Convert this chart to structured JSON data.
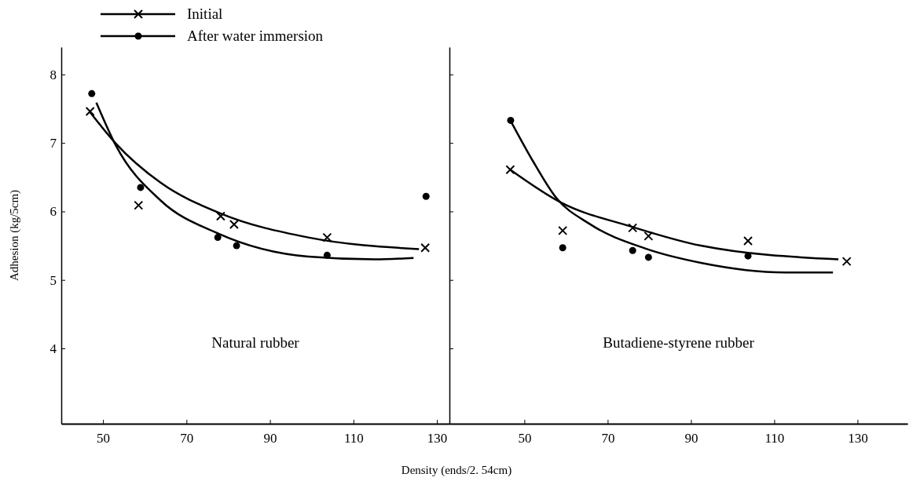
{
  "chart_data": [
    {
      "type": "scatter",
      "xlabel": "Density (ends/2. 54cm)",
      "ylabel": "Adhesion (kg/5cm)",
      "annotations": [
        "Natural rubber"
      ],
      "xlim": [
        40,
        133
      ],
      "xticks": [
        50,
        70,
        90,
        110,
        130
      ],
      "ylim": [
        2.9,
        8.4
      ],
      "yticks": [
        4,
        5,
        6,
        7,
        8
      ],
      "legend": "top left",
      "series": [
        {
          "name": "Initial",
          "type": "scatter",
          "marker": "cross",
          "color": "#000000",
          "x": [
            46.9,
            58.5,
            78.2,
            81.4,
            103.7,
            127.2
          ],
          "values": [
            7.46,
            6.09,
            5.93,
            5.81,
            5.62,
            5.47
          ]
        },
        {
          "name": "After water immersion",
          "type": "scatter",
          "marker": "circle",
          "color": "#000000",
          "x": [
            47.3,
            59.0,
            77.5,
            82.0,
            103.7,
            127.4
          ],
          "values": [
            7.72,
            6.35,
            5.62,
            5.5,
            5.36,
            6.22
          ]
        },
        {
          "type": "line",
          "marker": "none",
          "color": "#000000",
          "x": [
            46.9,
            53.1,
            63.8,
            78.2,
            99.2,
            125.7
          ],
          "values": [
            7.45,
            6.99,
            6.42,
            5.97,
            5.62,
            5.45
          ]
        },
        {
          "type": "line",
          "marker": "none",
          "color": "#000000",
          "x": [
            48.4,
            53.1,
            63.8,
            77.5,
            99.2,
            115.0,
            124.4
          ],
          "values": [
            7.59,
            6.96,
            6.16,
            5.68,
            5.34,
            5.3,
            5.32
          ]
        }
      ]
    },
    {
      "type": "scatter",
      "annotations": [
        "Butadiene-styrene rubber"
      ],
      "xlim": [
        32,
        142
      ],
      "xticks": [
        50,
        70,
        90,
        110,
        130
      ],
      "ylim": [
        2.9,
        8.4
      ],
      "yticks": [
        {
          "value": 4,
          "label": null
        },
        {
          "value": 5,
          "label": null
        },
        {
          "value": 6,
          "label": null
        },
        {
          "value": 7,
          "label": null
        },
        {
          "value": 8,
          "label": null
        }
      ],
      "tick_labels": "x",
      "series": [
        {
          "type": "scatter",
          "marker": "cross",
          "color": "#000000",
          "x": [
            46.6,
            59.2,
            76.0,
            79.8,
            103.7,
            127.4
          ],
          "values": [
            6.61,
            5.72,
            5.76,
            5.64,
            5.57,
            5.27
          ]
        },
        {
          "type": "scatter",
          "marker": "circle",
          "color": "#000000",
          "x": [
            46.7,
            59.2,
            76.0,
            79.8,
            103.7
          ],
          "values": [
            7.33,
            5.47,
            5.43,
            5.33,
            5.35
          ]
        },
        {
          "type": "line",
          "marker": "none",
          "color": "#000000",
          "x": [
            46.6,
            58.8,
            75.6,
            92.4,
            125.4
          ],
          "values": [
            6.61,
            6.13,
            5.78,
            5.5,
            5.3
          ]
        },
        {
          "type": "line",
          "marker": "none",
          "color": "#000000",
          "x": [
            46.9,
            52.1,
            57.5,
            65.6,
            79.0,
            92.4,
            112.6,
            124.1
          ],
          "values": [
            7.3,
            6.73,
            6.21,
            5.82,
            5.46,
            5.25,
            5.11,
            5.11
          ]
        }
      ]
    }
  ]
}
